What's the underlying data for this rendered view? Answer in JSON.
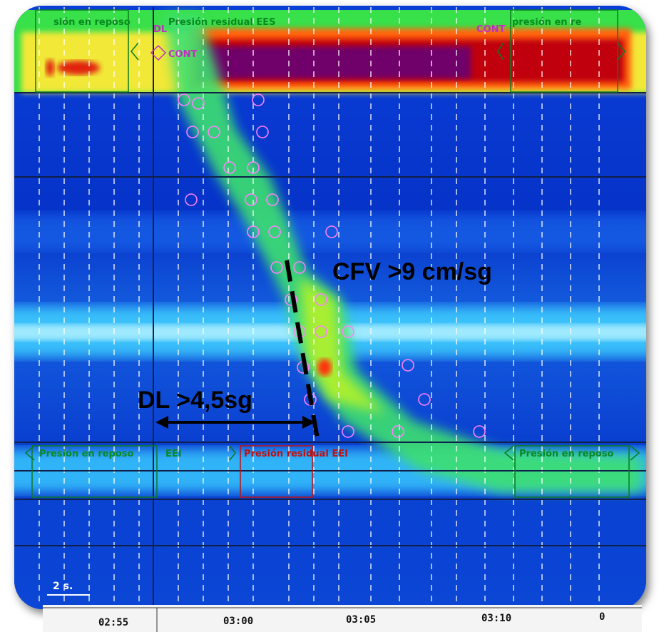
{
  "labels": {
    "top_left": "sión en reposo",
    "top_center": "Presión residual EES",
    "dl_marker": "DL",
    "cont_left": "CONT",
    "cont_right": "CONT",
    "top_right": "presión en re",
    "bottom_left": "Presión en reposo",
    "eei": "EEI",
    "bottom_center": "Presión residual EEI",
    "bottom_right": "Presión en reposo"
  },
  "annotations": {
    "cfv": "CFV >9 cm/sg",
    "dl": "DL >4,5sg"
  },
  "scale": "2 s.",
  "time_axis": [
    "02:55",
    "03:00",
    "03:05",
    "03:10",
    "0"
  ]
}
